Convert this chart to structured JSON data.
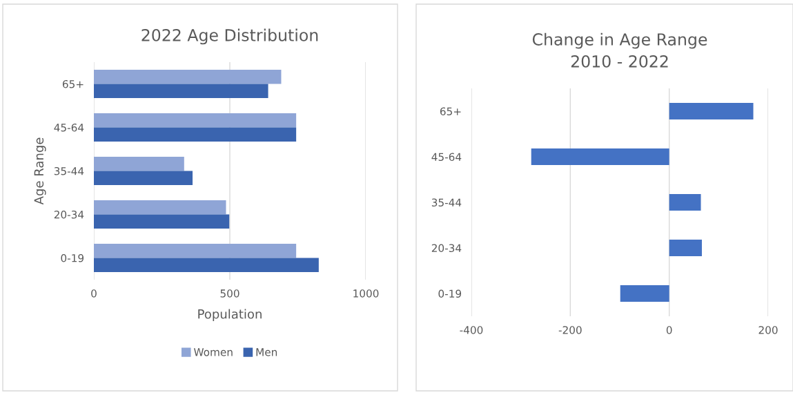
{
  "chart_data": [
    {
      "type": "bar",
      "orientation": "horizontal",
      "title": "2022 Age Distribution",
      "xlabel": "Population",
      "ylabel": "Age Range",
      "categories": [
        "65+",
        "45-64",
        "35-44",
        "20-34",
        "0-19"
      ],
      "series": [
        {
          "name": "Women",
          "color": "#8fa5d6",
          "values": [
            689,
            744,
            332,
            486,
            744
          ]
        },
        {
          "name": "Men",
          "color": "#3a64af",
          "values": [
            641,
            744,
            363,
            498,
            827
          ]
        }
      ],
      "xlim": [
        0,
        1000
      ],
      "xticks": [
        0,
        500,
        1000
      ],
      "grid": "x",
      "legend": "bottom"
    },
    {
      "type": "bar",
      "orientation": "horizontal",
      "title": "Change in Age Range\n2010 - 2022",
      "categories": [
        "65+",
        "45-64",
        "35-44",
        "20-34",
        "0-19"
      ],
      "series": [
        {
          "color": "#4472c4",
          "values": [
            170,
            -279,
            64,
            66,
            -99
          ]
        }
      ],
      "xlim": [
        -400,
        200
      ],
      "xticks": [
        -400,
        -200,
        0,
        200
      ],
      "grid": "x"
    }
  ]
}
